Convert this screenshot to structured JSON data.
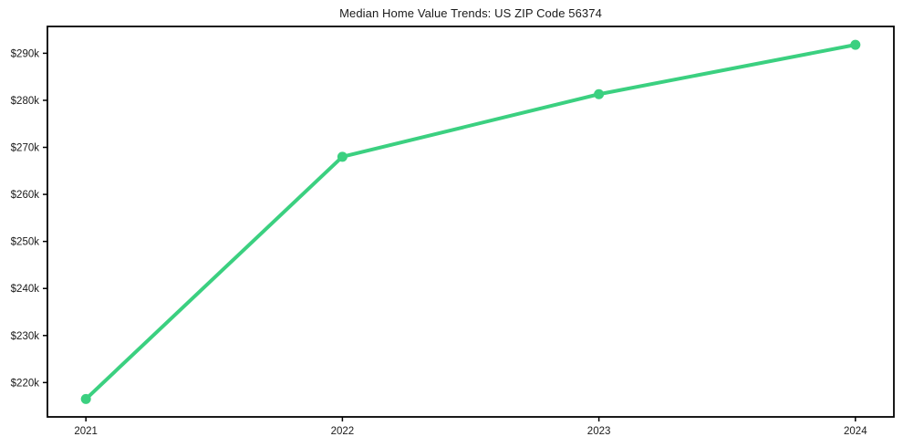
{
  "page": {
    "background_color": "#ffffff"
  },
  "chart_data": {
    "type": "line",
    "title": "Median Home Value Trends: US ZIP Code 56374",
    "x": [
      2021,
      2022,
      2023,
      2024
    ],
    "x_tick_labels": [
      "2021",
      "2022",
      "2023",
      "2024"
    ],
    "series": [
      {
        "name": "median-home-value",
        "values_usd_thousands": [
          216.5,
          268.0,
          281.3,
          291.8
        ],
        "color": "#3bd080",
        "line_width": 4,
        "marker": "circle",
        "marker_radius": 5.5
      }
    ],
    "y_ticks_usd_thousands": [
      220,
      230,
      240,
      250,
      260,
      270,
      280,
      290
    ],
    "y_tick_labels": [
      "$220k",
      "$230k",
      "$240k",
      "$250k",
      "$260k",
      "$270k",
      "$280k",
      "$290k"
    ],
    "xlim": [
      2020.85,
      2024.15
    ],
    "ylim_usd_thousands": [
      212.7,
      295.7
    ],
    "grid": false,
    "legend": "none",
    "frame": "full-box",
    "axis_color": "#000000",
    "text_color": "#1a1a1a"
  }
}
